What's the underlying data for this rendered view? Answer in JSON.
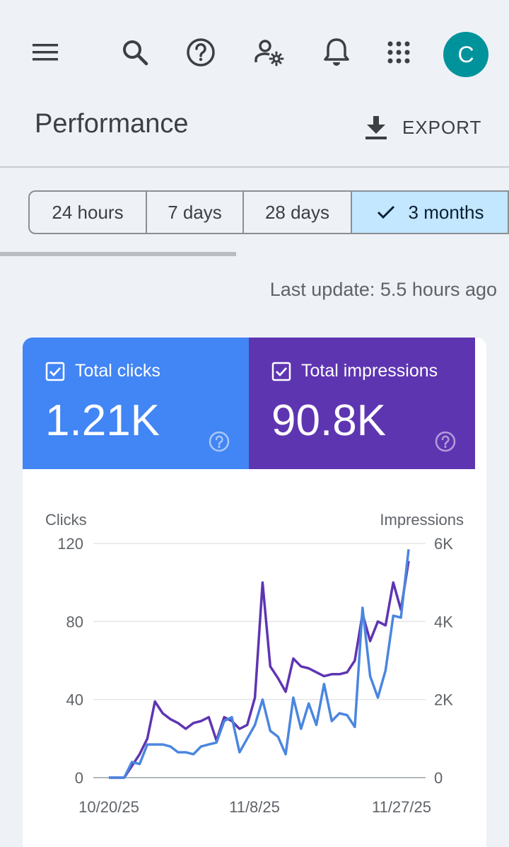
{
  "topbar": {
    "icons": [
      "menu-icon",
      "search-icon",
      "help-icon",
      "manage-users-icon",
      "notifications-icon",
      "apps-icon"
    ],
    "avatar_letter": "C",
    "avatar_color": "#00939c"
  },
  "header": {
    "title": "Performance",
    "export_label": "EXPORT"
  },
  "range_tabs": [
    {
      "label": "24 hours",
      "selected": false
    },
    {
      "label": "7 days",
      "selected": false
    },
    {
      "label": "28 days",
      "selected": false
    },
    {
      "label": "3 months",
      "selected": true
    }
  ],
  "last_update": "Last update: 5.5 hours ago",
  "metrics": {
    "clicks": {
      "label": "Total clicks",
      "value": "1.21K",
      "color": "#4285f4",
      "checked": true
    },
    "impressions": {
      "label": "Total impressions",
      "value": "90.8K",
      "color": "#5e35b1",
      "checked": true
    }
  },
  "chart_data": {
    "type": "line",
    "left_axis_label": "Clicks",
    "right_axis_label": "Impressions",
    "left_ticks": [
      "120",
      "80",
      "40",
      "0"
    ],
    "right_ticks": [
      "6K",
      "4K",
      "2K",
      "0"
    ],
    "x_tick_labels": [
      "10/20/25",
      "11/8/25",
      "11/27/25"
    ],
    "left_ylim": [
      0,
      120
    ],
    "right_ylim": [
      0,
      6000
    ],
    "grid": true,
    "series": [
      {
        "name": "Clicks",
        "axis": "left",
        "color": "#4a86e0",
        "values": [
          0,
          0,
          0,
          8,
          7,
          17,
          17,
          17,
          16,
          13,
          13,
          12,
          16,
          17,
          18,
          29,
          31,
          13,
          20,
          27,
          40,
          24,
          21,
          12,
          41,
          25,
          38,
          27,
          48,
          29,
          33,
          32,
          26,
          87,
          52,
          41,
          55,
          83,
          82,
          117
        ]
      },
      {
        "name": "Impressions",
        "axis": "right",
        "color": "#5e35b1",
        "values": [
          0,
          0,
          0,
          300,
          600,
          1000,
          1950,
          1650,
          1500,
          1400,
          1250,
          1400,
          1450,
          1550,
          950,
          1550,
          1450,
          1250,
          1350,
          2050,
          5000,
          2850,
          2550,
          2200,
          3050,
          2850,
          2800,
          2700,
          2600,
          2650,
          2650,
          2700,
          3000,
          4200,
          3500,
          4000,
          3900,
          5000,
          4300,
          5550
        ]
      }
    ]
  }
}
